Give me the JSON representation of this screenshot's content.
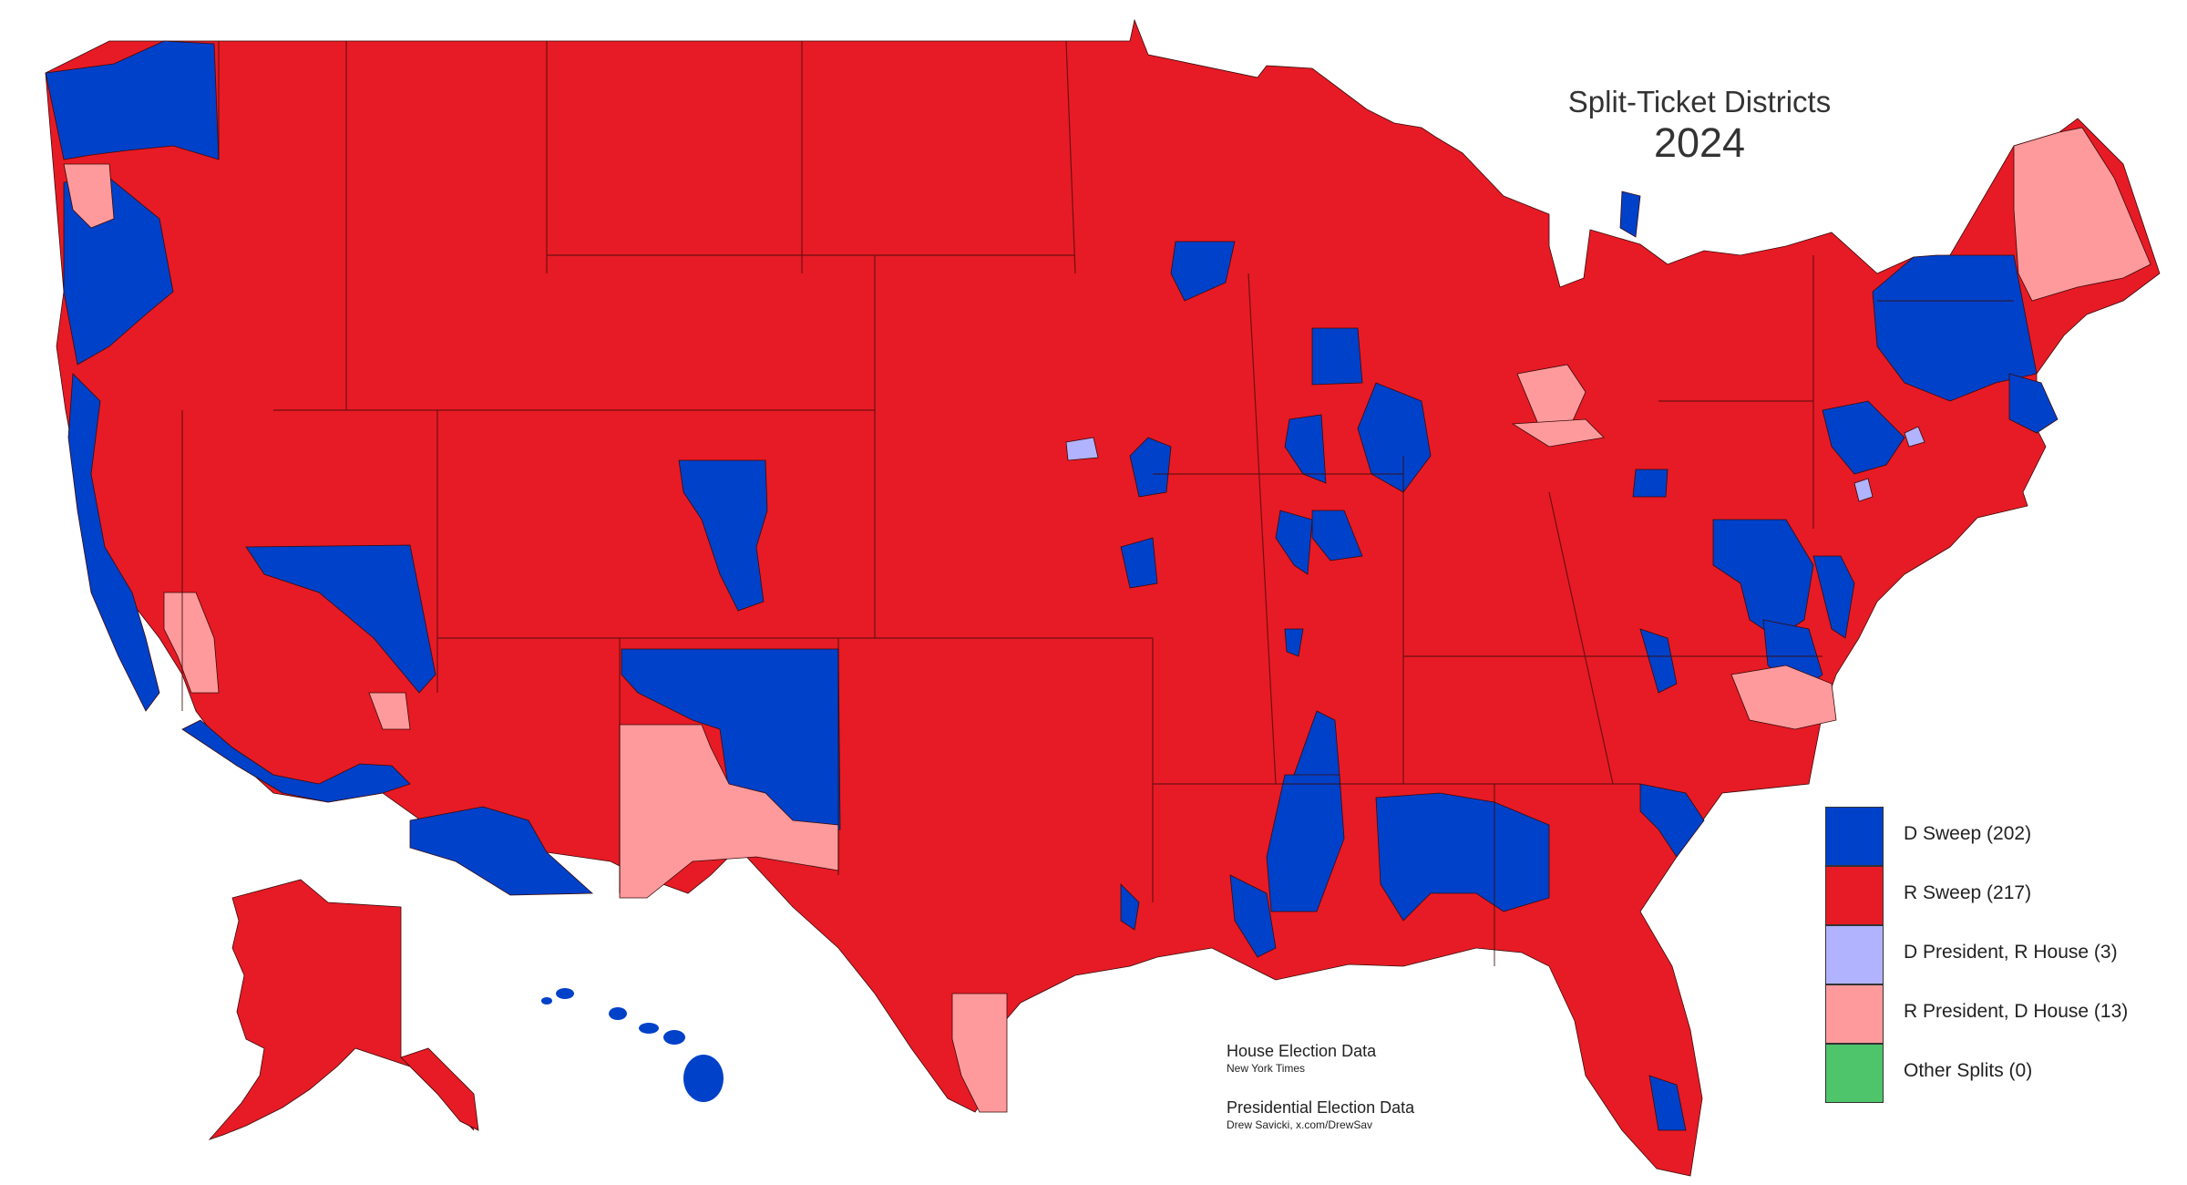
{
  "title": {
    "line1": "Split-Ticket Districts",
    "line2": "2024"
  },
  "legend": [
    {
      "label": "D Sweep (202)",
      "color": "#0041c9"
    },
    {
      "label": "R Sweep (217)",
      "color": "#e71b25"
    },
    {
      "label": "D President, R House (3)",
      "color": "#b1b3fe"
    },
    {
      "label": "R President, D House (13)",
      "color": "#fe9a9c"
    },
    {
      "label": "Other Splits (0)",
      "color": "#4ec46b"
    }
  ],
  "sources": [
    {
      "heading": "House Election Data",
      "credit": "New York Times"
    },
    {
      "heading": "Presidential Election Data",
      "credit": "Drew Savicki, x.com/DrewSav"
    }
  ],
  "colors": {
    "d_sweep": "#0041c9",
    "r_sweep": "#e71b25",
    "d_pres_r_house": "#b1b3fe",
    "r_pres_d_house": "#fe9a9c",
    "border": "#3a0a0a"
  }
}
